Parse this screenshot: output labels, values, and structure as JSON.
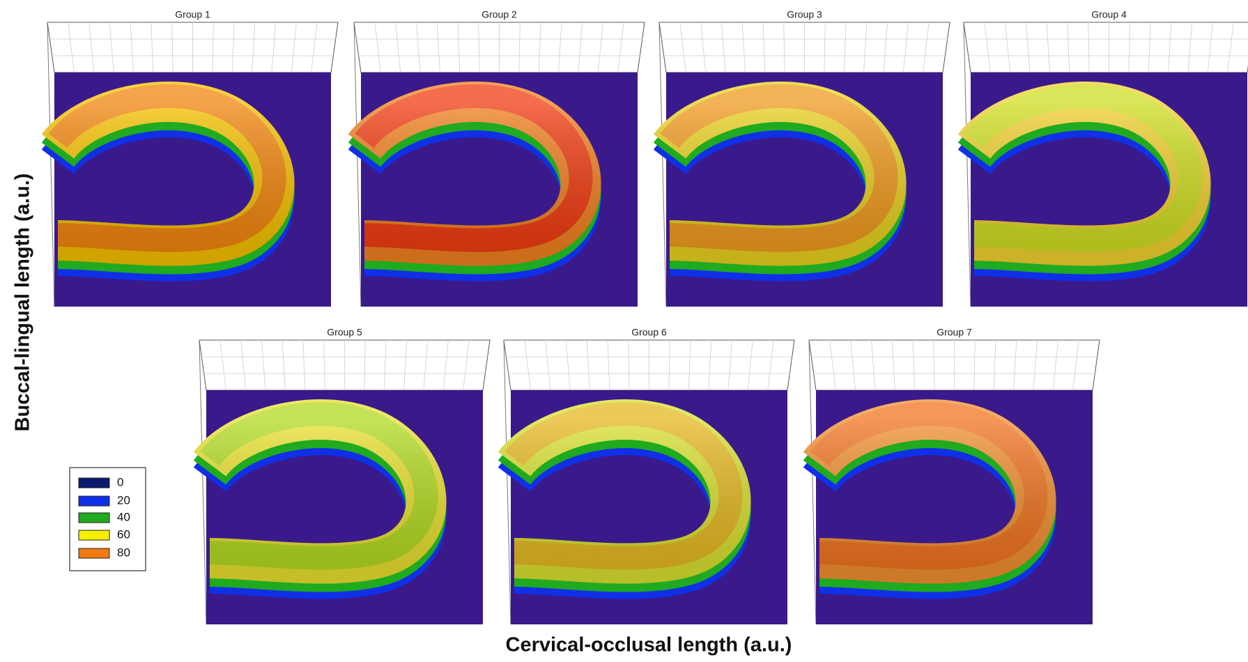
{
  "axes": {
    "x_label": "Cervical-occlusal length (a.u.)",
    "y_label": "Buccal-lingual length (a.u.)"
  },
  "panels": [
    {
      "title": "Group 1"
    },
    {
      "title": "Group 2"
    },
    {
      "title": "Group 3"
    },
    {
      "title": "Group 4"
    },
    {
      "title": "Group 5"
    },
    {
      "title": "Group 6"
    },
    {
      "title": "Group 7"
    }
  ],
  "legend": [
    {
      "label": "0",
      "color": "#0a1a6e"
    },
    {
      "label": "20",
      "color": "#1030e8"
    },
    {
      "label": "40",
      "color": "#1faa1f"
    },
    {
      "label": "60",
      "color": "#f4f000"
    },
    {
      "label": "80",
      "color": "#f07a10"
    }
  ]
}
